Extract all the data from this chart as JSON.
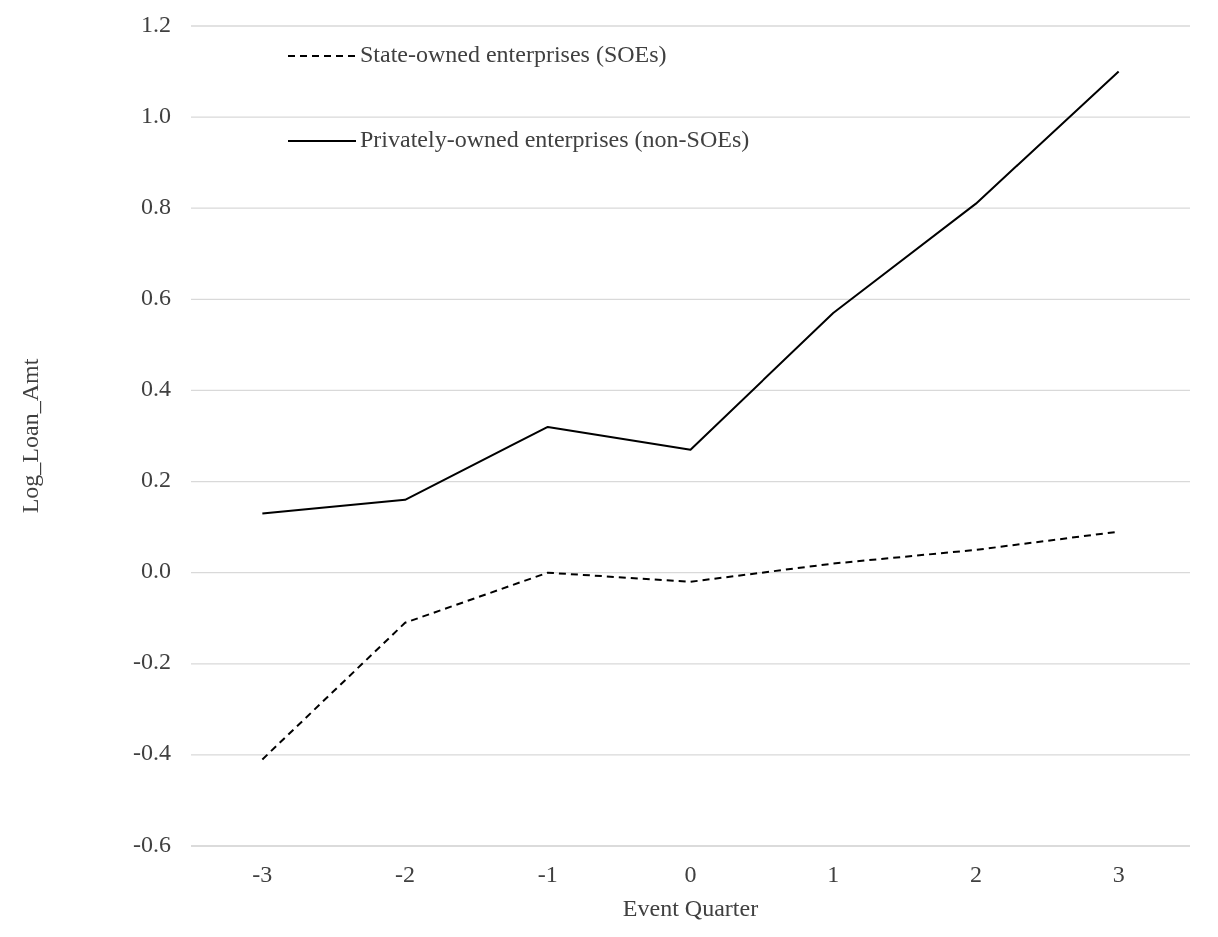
{
  "chart_data": {
    "type": "line",
    "xlabel": "Event Quarter",
    "ylabel": "Log_Loan_Amt",
    "categories": [
      "-3",
      "-2",
      "-1",
      "0",
      "1",
      "2",
      "3"
    ],
    "ylim": [
      -0.6,
      1.2
    ],
    "yticks": [
      {
        "value": -0.6,
        "label": "-0.6"
      },
      {
        "value": -0.4,
        "label": "-0.4"
      },
      {
        "value": -0.2,
        "label": "-0.2"
      },
      {
        "value": 0,
        "label": "0.0"
      },
      {
        "value": 0.2,
        "label": "0.2"
      },
      {
        "value": 0.4,
        "label": "0.4"
      },
      {
        "value": 0.6,
        "label": "0.6"
      },
      {
        "value": 0.8,
        "label": "0.8"
      },
      {
        "value": 1,
        "label": "1.0"
      },
      {
        "value": 1.2,
        "label": "1.2"
      }
    ],
    "grid": "y",
    "legend": "top left",
    "marker": "none",
    "series": [
      {
        "name": "State-owned enterprises (SOEs)",
        "color": "#000000",
        "line_style": "dashed",
        "values": [
          -0.41,
          -0.11,
          0.0,
          -0.02,
          0.02,
          0.05,
          0.09
        ]
      },
      {
        "name": "Privately-owned enterprises (non-SOEs)",
        "color": "#000000",
        "line_style": "solid",
        "values": [
          0.13,
          0.16,
          0.32,
          0.27,
          0.57,
          0.81,
          1.1
        ]
      }
    ]
  }
}
